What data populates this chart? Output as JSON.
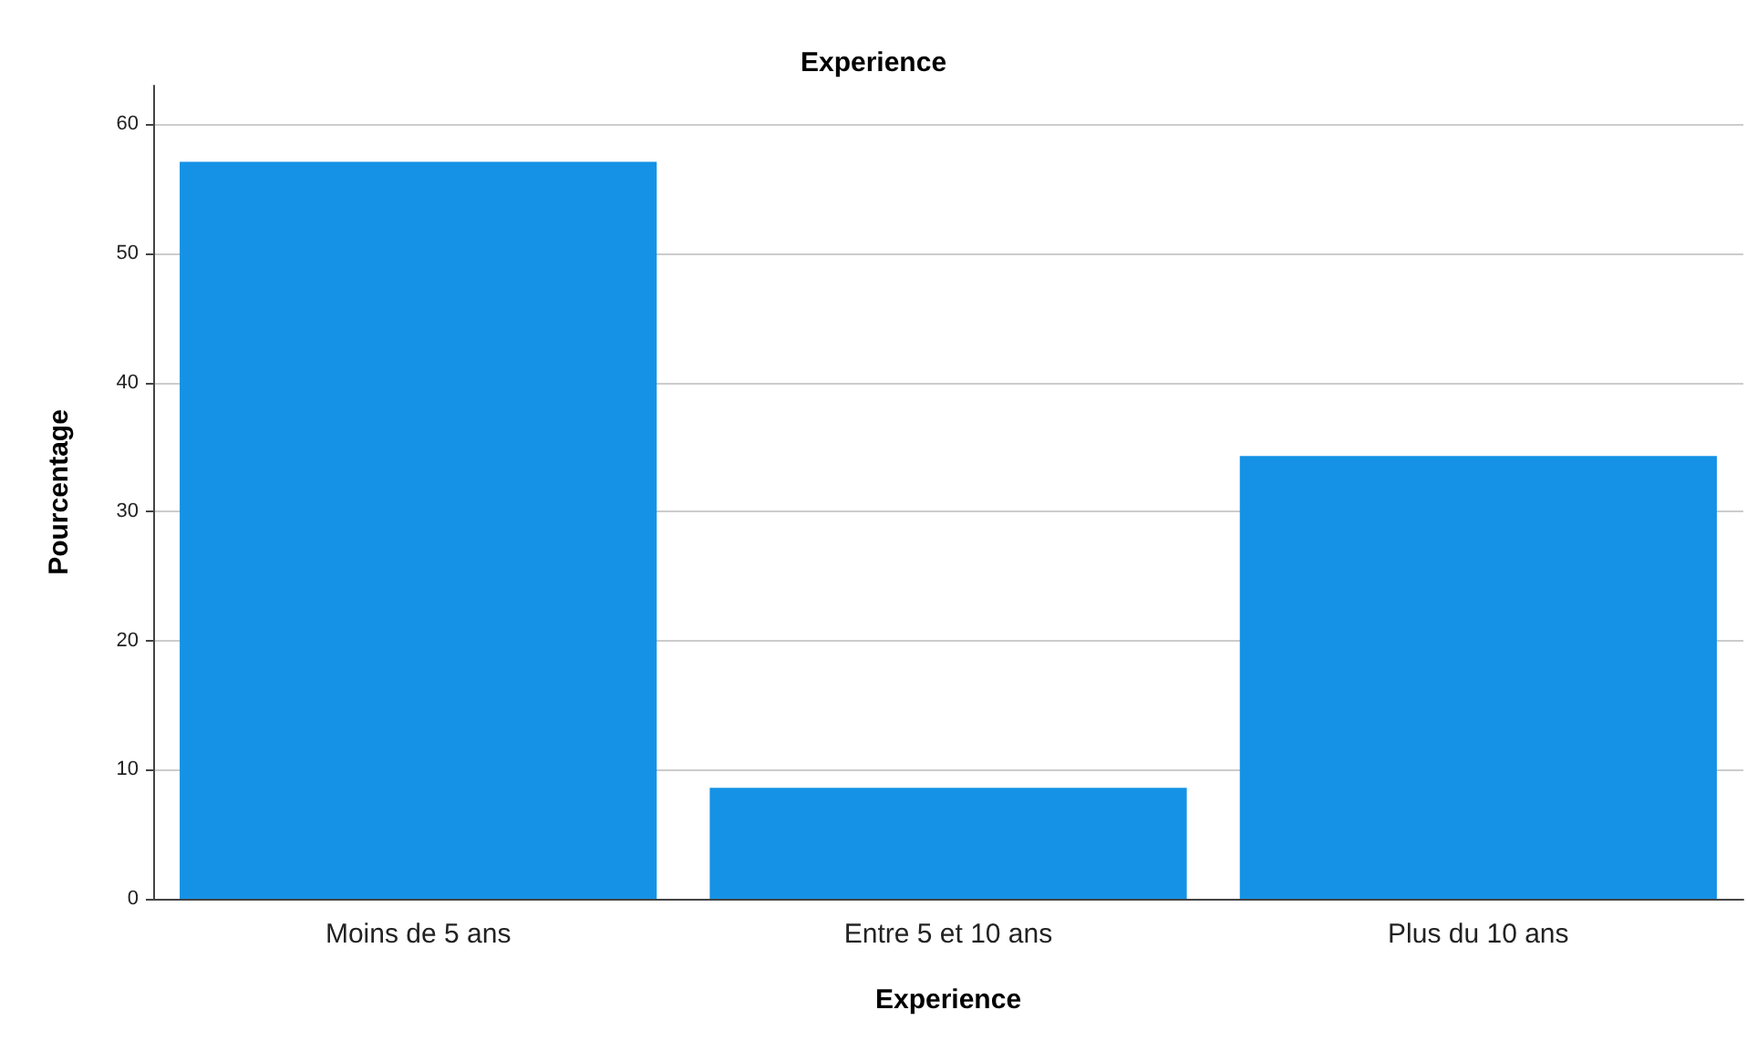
{
  "chart_data": {
    "type": "bar",
    "title": "Experience",
    "xlabel": "Experience",
    "ylabel": "Pourcentage",
    "categories": [
      "Moins de 5 ans",
      "Entre 5 et 10 ans",
      "Plus du 10 ans"
    ],
    "values": [
      57.1,
      8.6,
      34.3
    ],
    "color": "#1592e6",
    "ylim": [
      0,
      63
    ],
    "yticks": [
      0,
      10,
      20,
      30,
      40,
      50,
      60
    ],
    "grid": "y"
  }
}
